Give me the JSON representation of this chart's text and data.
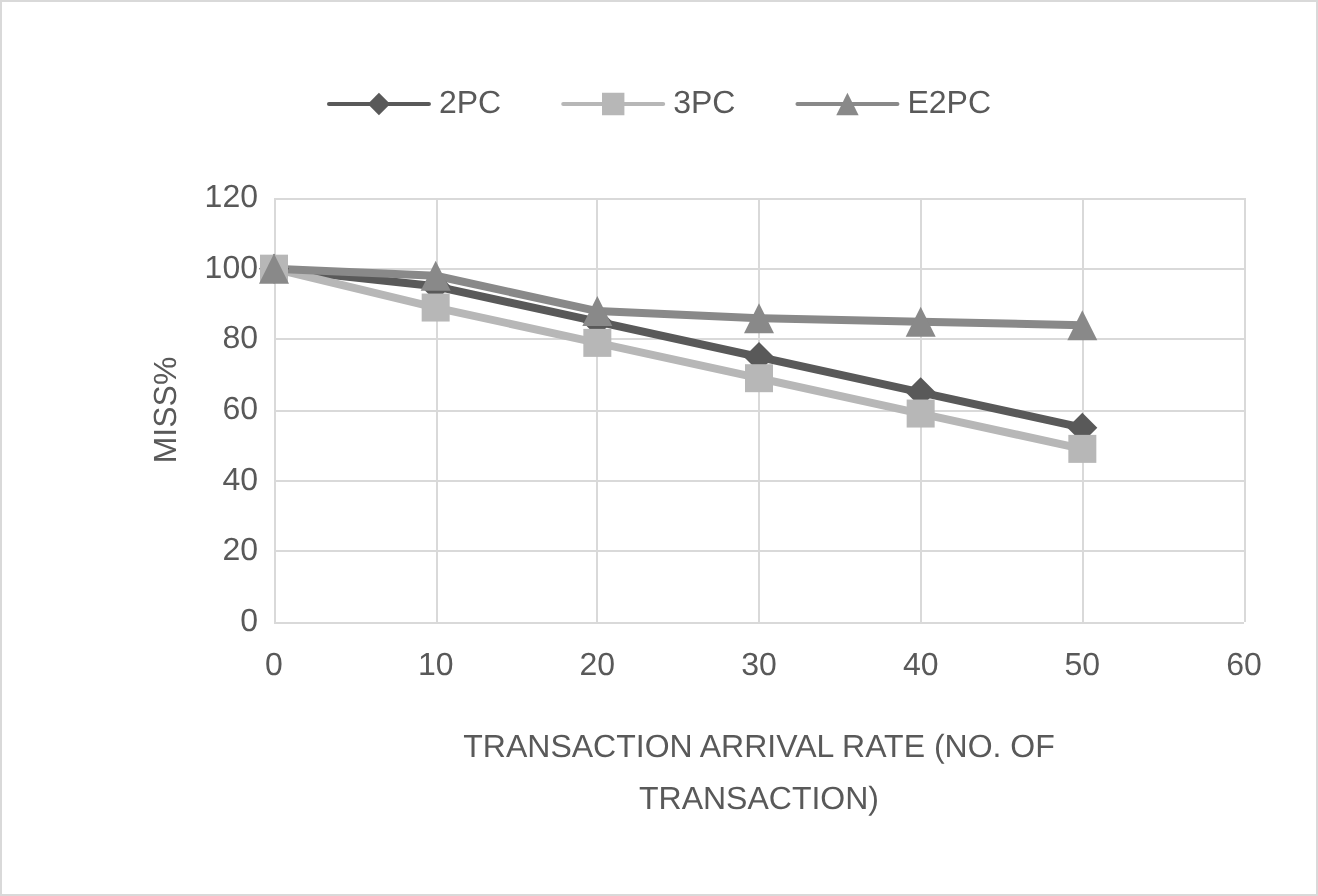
{
  "chart_data": {
    "type": "line",
    "xlabel": "TRANSACTION ARRIVAL RATE (NO. OF TRANSACTION)",
    "ylabel": "MISS%",
    "x": [
      0,
      10,
      20,
      30,
      40,
      50
    ],
    "series": [
      {
        "name": "2PC",
        "color": "#595959",
        "marker": "diamond",
        "values": [
          100,
          95,
          85,
          75,
          65,
          55
        ]
      },
      {
        "name": "3PC",
        "color": "#b7b7b7",
        "marker": "square",
        "values": [
          100,
          89,
          79,
          69,
          59,
          49
        ]
      },
      {
        "name": "E2PC",
        "color": "#898989",
        "marker": "triangle",
        "values": [
          100,
          98,
          88,
          86,
          85,
          84
        ]
      }
    ],
    "xlim": [
      0,
      60
    ],
    "xticks": [
      0,
      10,
      20,
      30,
      40,
      50,
      60
    ],
    "ylim": [
      0,
      120
    ],
    "yticks": [
      0,
      20,
      40,
      60,
      80,
      100,
      120
    ],
    "grid": true,
    "legend": "top",
    "line_style": "solid"
  }
}
